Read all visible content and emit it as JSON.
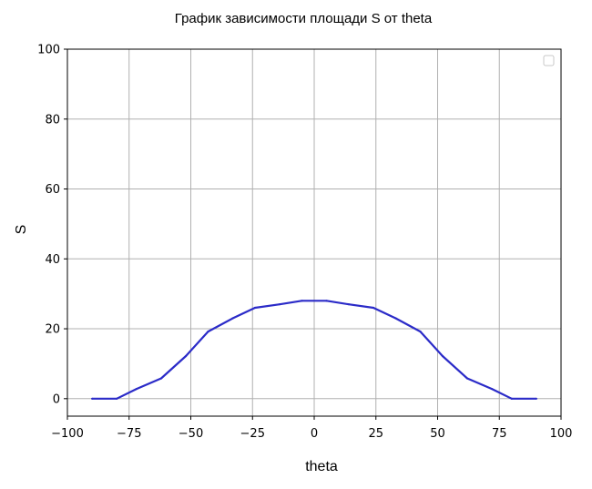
{
  "chart_data": {
    "type": "line",
    "title": "График зависимости площади S от theta",
    "xlabel": "theta",
    "ylabel": "S",
    "xlim": [
      -100,
      100
    ],
    "ylim": [
      -5,
      100
    ],
    "xticks": [
      -100,
      -75,
      -50,
      -25,
      0,
      25,
      50,
      75,
      100
    ],
    "xtick_labels": [
      "−100",
      "−75",
      "−50",
      "−25",
      "0",
      "25",
      "50",
      "75",
      "100"
    ],
    "yticks": [
      0,
      20,
      40,
      60,
      80,
      100
    ],
    "ytick_labels": [
      "0",
      "20",
      "40",
      "60",
      "80",
      "100"
    ],
    "grid": true,
    "legend": "top-right (empty)",
    "series": [
      {
        "color": "#2b2bc8",
        "x": [
          -90,
          -80,
          -72,
          -62,
          -52,
          -43,
          -33,
          -24,
          -14,
          -5,
          5,
          14,
          24,
          33,
          43,
          52,
          62,
          72,
          80,
          90
        ],
        "y": [
          0,
          0,
          2.8,
          5.8,
          12.2,
          19.2,
          23.0,
          26.0,
          27.0,
          28.0,
          28.0,
          27.0,
          26.0,
          23.0,
          19.2,
          12.2,
          5.8,
          2.8,
          0,
          0
        ]
      }
    ]
  }
}
